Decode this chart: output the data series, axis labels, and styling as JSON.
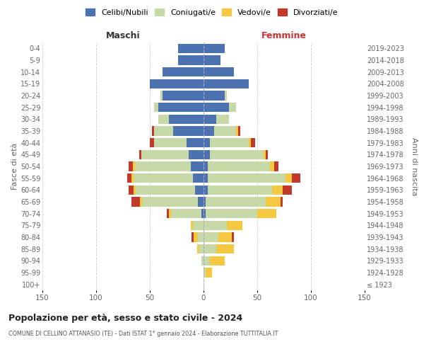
{
  "age_groups": [
    "100+",
    "95-99",
    "90-94",
    "85-89",
    "80-84",
    "75-79",
    "70-74",
    "65-69",
    "60-64",
    "55-59",
    "50-54",
    "45-49",
    "40-44",
    "35-39",
    "30-34",
    "25-29",
    "20-24",
    "15-19",
    "10-14",
    "5-9",
    "0-4"
  ],
  "birth_years": [
    "≤ 1923",
    "1924-1928",
    "1929-1933",
    "1934-1938",
    "1939-1943",
    "1944-1948",
    "1949-1953",
    "1954-1958",
    "1959-1963",
    "1964-1968",
    "1969-1973",
    "1974-1978",
    "1979-1983",
    "1984-1988",
    "1989-1993",
    "1994-1998",
    "1999-2003",
    "2004-2008",
    "2009-2013",
    "2014-2018",
    "2019-2023"
  ],
  "maschi": {
    "celibi": [
      0,
      0,
      0,
      0,
      0,
      0,
      2,
      5,
      8,
      10,
      12,
      14,
      16,
      28,
      32,
      42,
      38,
      50,
      38,
      24,
      24
    ],
    "coniugati": [
      0,
      0,
      2,
      4,
      5,
      10,
      28,
      52,
      55,
      55,
      52,
      44,
      30,
      18,
      10,
      4,
      2,
      0,
      0,
      0,
      0
    ],
    "vedovi": [
      0,
      0,
      0,
      2,
      4,
      2,
      2,
      2,
      2,
      2,
      2,
      0,
      0,
      0,
      0,
      0,
      0,
      0,
      0,
      0,
      0
    ],
    "divorziati": [
      0,
      0,
      0,
      0,
      2,
      0,
      2,
      8,
      5,
      4,
      4,
      2,
      4,
      2,
      0,
      0,
      0,
      0,
      0,
      0,
      0
    ]
  },
  "femmine": {
    "nubili": [
      0,
      0,
      0,
      0,
      0,
      0,
      2,
      2,
      4,
      4,
      4,
      6,
      6,
      10,
      12,
      24,
      20,
      42,
      28,
      16,
      20
    ],
    "coniugate": [
      0,
      2,
      6,
      12,
      14,
      22,
      48,
      56,
      60,
      72,
      58,
      50,
      36,
      20,
      12,
      6,
      2,
      0,
      0,
      0,
      0
    ],
    "vedove": [
      0,
      6,
      14,
      16,
      12,
      14,
      18,
      14,
      10,
      6,
      4,
      2,
      2,
      2,
      0,
      0,
      0,
      0,
      0,
      0,
      0
    ],
    "divorziate": [
      0,
      0,
      0,
      0,
      2,
      0,
      0,
      2,
      8,
      8,
      4,
      2,
      4,
      2,
      0,
      0,
      0,
      0,
      0,
      0,
      0
    ]
  },
  "colors": {
    "celibi_nubili": "#4c72b0",
    "coniugati": "#c8d9a8",
    "vedovi": "#f5c842",
    "divorziati": "#c0392b"
  },
  "title": "Popolazione per età, sesso e stato civile - 2024",
  "subtitle": "COMUNE DI CELLINO ATTANASIO (TE) - Dati ISTAT 1° gennaio 2024 - Elaborazione TUTTITALIA.IT",
  "xlabel_left": "Maschi",
  "xlabel_right": "Femmine",
  "ylabel_left": "Fasce di età",
  "ylabel_right": "Anni di nascita",
  "legend_labels": [
    "Celibi/Nubili",
    "Coniugati/e",
    "Vedovi/e",
    "Divorziati/e"
  ],
  "xlim": 150,
  "background_color": "#ffffff",
  "grid_color": "#cccccc"
}
